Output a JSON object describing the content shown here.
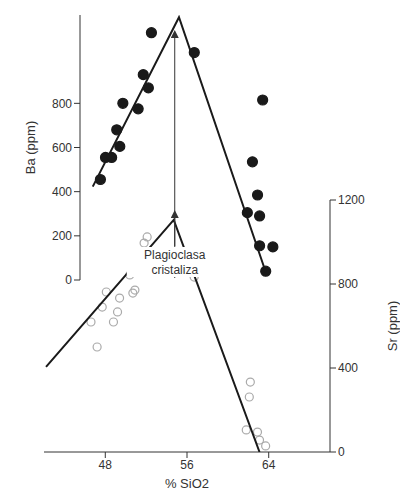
{
  "chart_data": [
    {
      "type": "scatter",
      "ylabel": "Ba (ppm)",
      "xlim": [
        45.5,
        70
      ],
      "ylim": [
        0,
        1200
      ],
      "yticks": [
        0,
        200,
        400,
        600,
        800
      ],
      "tick_labels": "y",
      "annotations": [
        {
          "text": "Plagioclasa cristaliza",
          "x": 54.8
        }
      ],
      "series": [
        {
          "type": "scatter",
          "color": "#1a1a1a",
          "marker": "circle",
          "x": [
            47.5,
            48.0,
            48.6,
            49.1,
            49.4,
            49.7,
            51.2,
            51.7,
            52.2,
            52.5,
            56.7,
            61.9,
            62.4,
            62.9,
            63.1,
            63.4,
            63.1,
            64.4,
            63.7
          ],
          "values": [
            455,
            555,
            555,
            680,
            605,
            800,
            775,
            930,
            870,
            1120,
            1030,
            305,
            535,
            385,
            290,
            815,
            155,
            150,
            40
          ]
        },
        {
          "type": "line",
          "color": "#1a1a1a",
          "line_style": "solid",
          "x": [
            46.75,
            55.2,
            63.7
          ],
          "values": [
            423,
            1190,
            36
          ]
        }
      ]
    },
    {
      "type": "scatter",
      "xlabel": "% SiO2",
      "ylabel": "Sr (ppm)",
      "xlim": [
        42,
        70
      ],
      "xticks": [
        48,
        56,
        64
      ],
      "y2lim": [
        0,
        1200
      ],
      "y2ticks": [
        0,
        400,
        800,
        1200
      ],
      "series": [
        {
          "type": "scatter",
          "axis": "y2",
          "color": "#aaaaaa",
          "marker": "open_circle",
          "x": [
            46.6,
            47.2,
            47.7,
            48.1,
            48.8,
            49.2,
            49.4,
            50.4,
            50.7,
            50.9,
            51.4,
            51.8,
            52.1,
            56.7,
            62.2,
            62.1,
            61.8,
            62.9,
            63.1,
            63.7
          ],
          "values": [
            619,
            500,
            690,
            762,
            619,
            667,
            733,
            843,
            757,
            771,
            938,
            995,
            1024,
            833,
            333,
            262,
            105,
            95,
            57,
            29
          ]
        },
        {
          "type": "line",
          "axis": "y2",
          "color": "#1a1a1a",
          "line_style": "solid",
          "x": [
            42.2,
            54.7,
            63.1
          ],
          "values": [
            405,
            1105,
            0
          ]
        }
      ]
    }
  ]
}
